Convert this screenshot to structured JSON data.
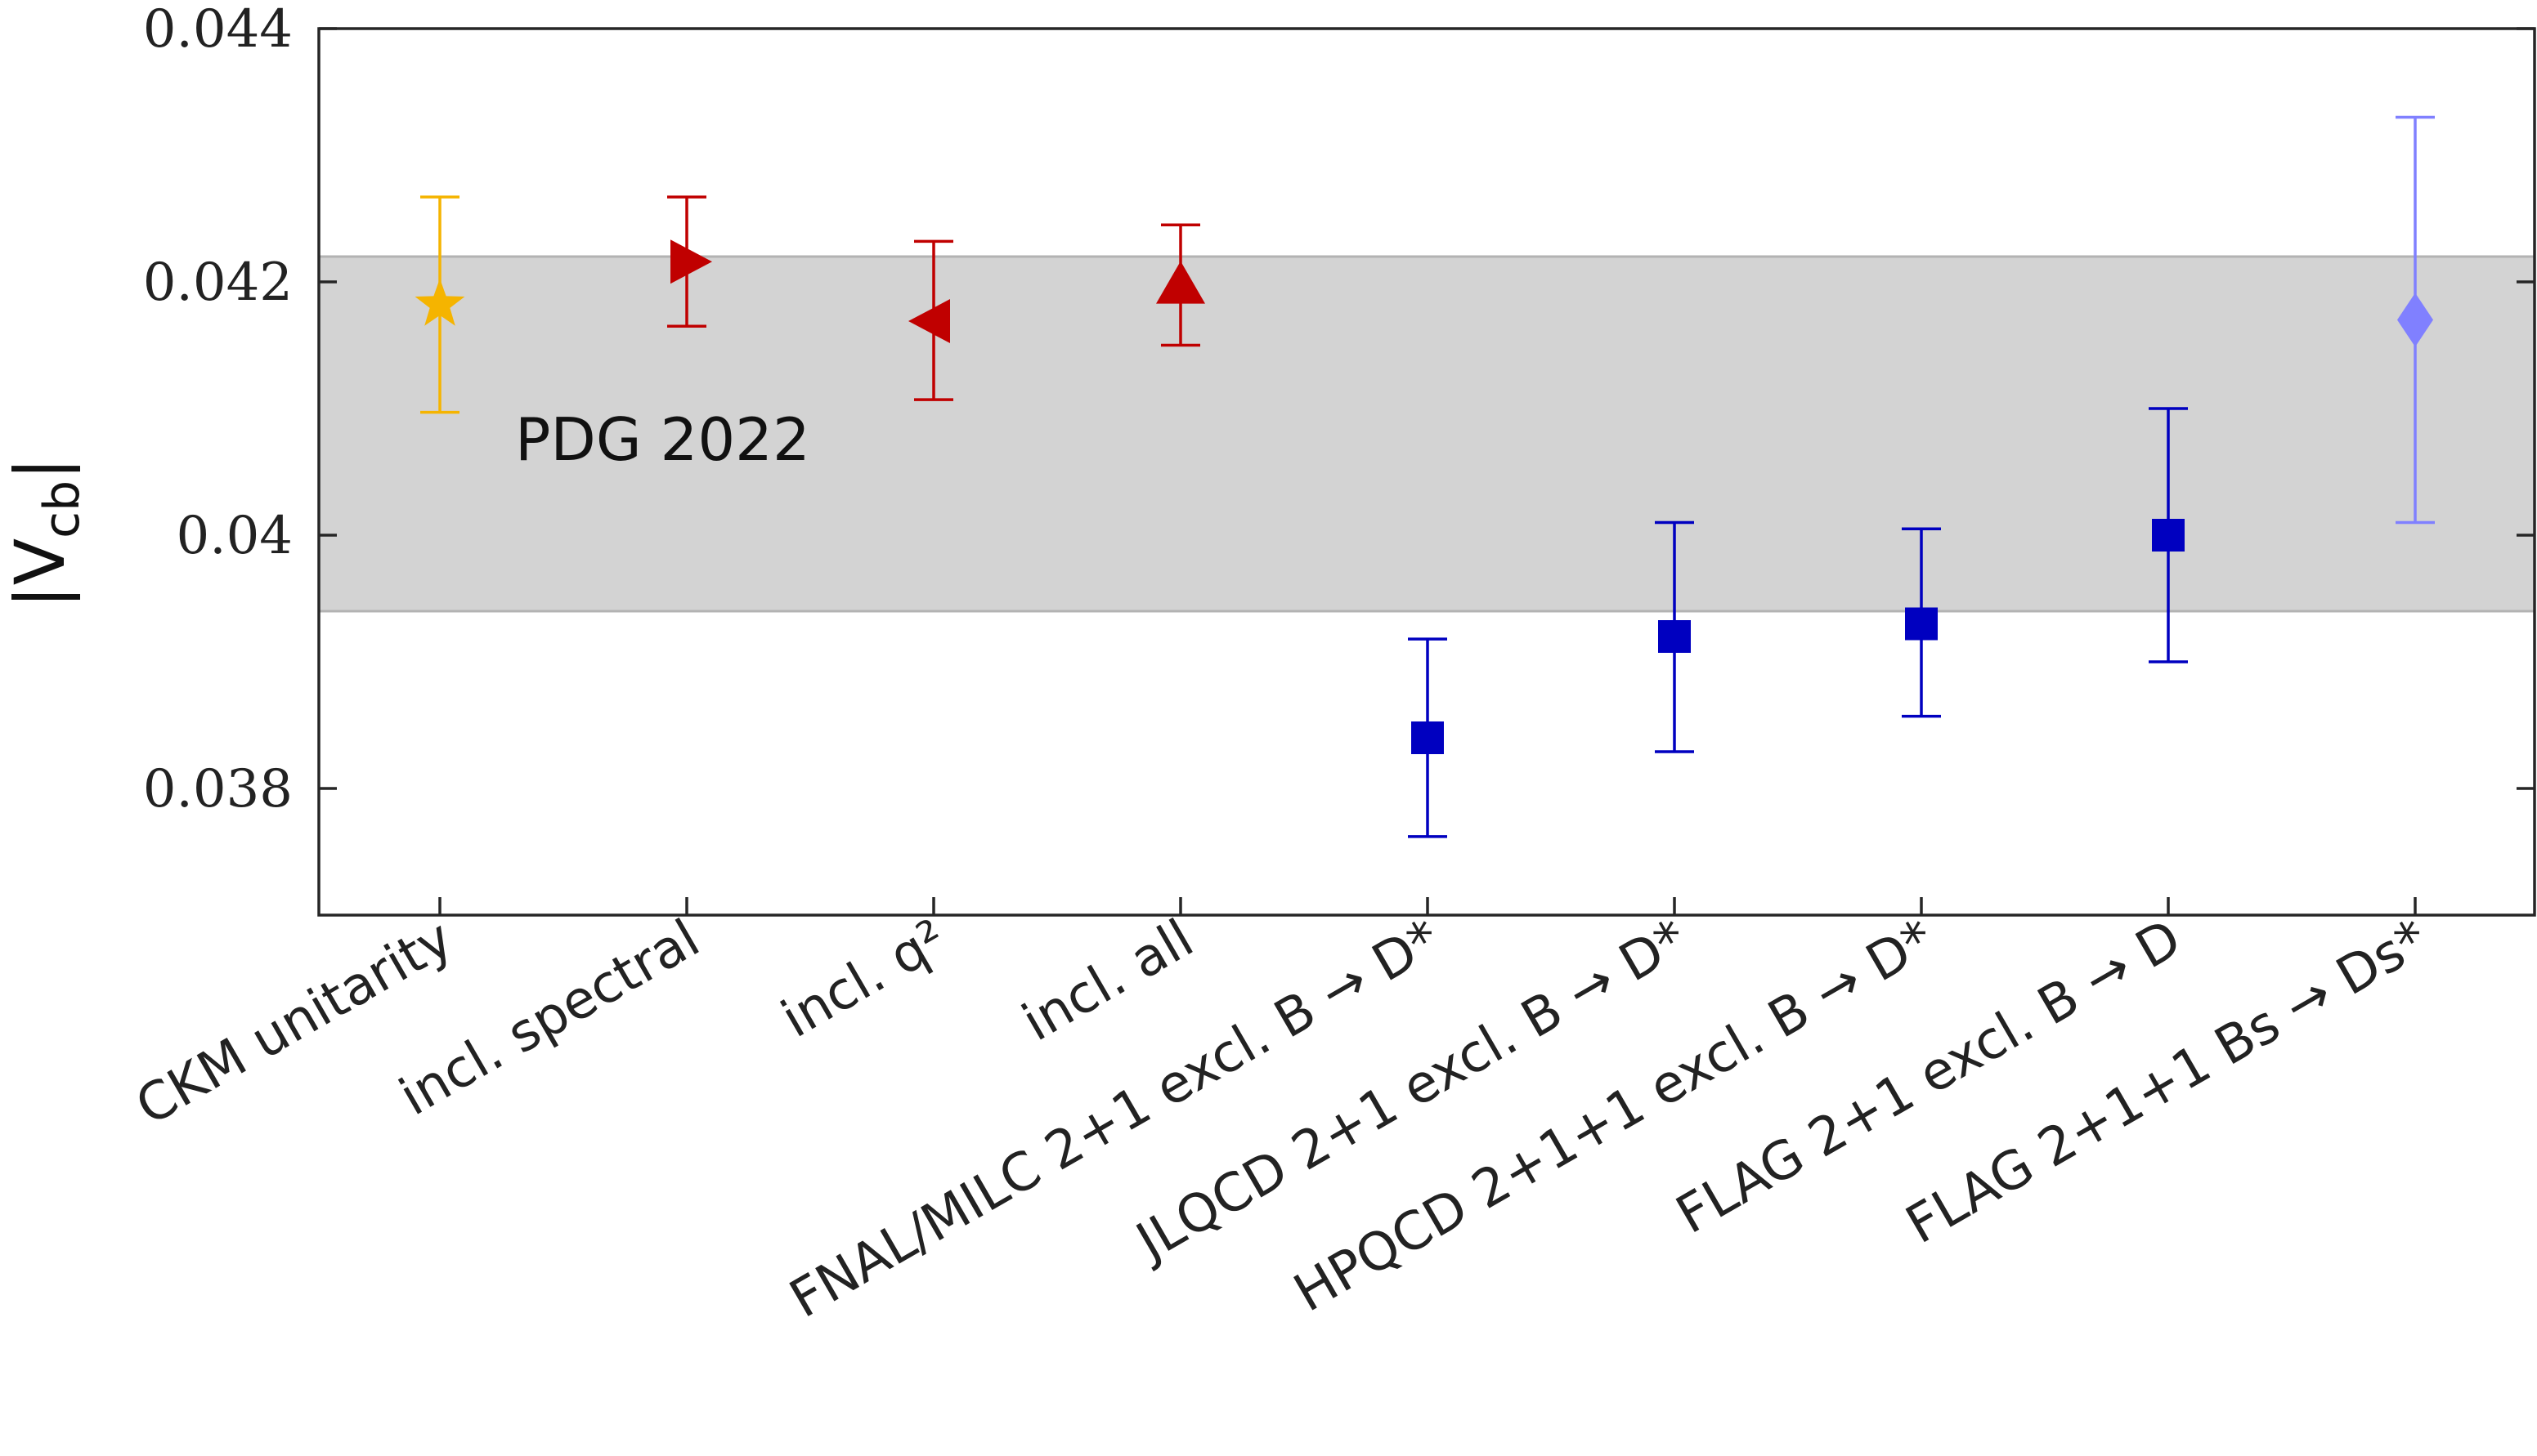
{
  "chart_data": {
    "type": "scatter",
    "ylabel": "|V",
    "ylabel_sub": "cb",
    "ylabel_close": "|",
    "ylim": [
      0.037,
      0.044
    ],
    "yticks": [
      {
        "value": 0.038,
        "label": "0.038"
      },
      {
        "value": 0.04,
        "label": "0.04"
      },
      {
        "value": 0.042,
        "label": "0.042"
      },
      {
        "value": 0.044,
        "label": "0.044"
      }
    ],
    "band": {
      "label": "PDG 2022",
      "low": 0.0394,
      "high": 0.0422,
      "color": "#d3d3d3"
    },
    "points": [
      {
        "label": "CKM unitarity",
        "value": 0.04182,
        "err_low": 0.04097,
        "err_high": 0.04267,
        "marker": "star",
        "color": "#f5b400"
      },
      {
        "label": "incl. spectral",
        "value": 0.04216,
        "err_low": 0.04165,
        "err_high": 0.04267,
        "marker": "triangle-right",
        "color": "#c00000"
      },
      {
        "label": "incl. q²",
        "value": 0.04169,
        "err_low": 0.04107,
        "err_high": 0.04232,
        "marker": "triangle-left",
        "color": "#c00000"
      },
      {
        "label": "incl. all",
        "value": 0.04197,
        "err_low": 0.0415,
        "err_high": 0.04245,
        "marker": "triangle-up",
        "color": "#c00000"
      },
      {
        "label": "FNAL/MILC 2+1 excl. B → D*",
        "value": 0.0384,
        "err_low": 0.03762,
        "err_high": 0.03918,
        "marker": "square",
        "color": "#0000c0"
      },
      {
        "label": "JLQCD 2+1 excl. B → D*",
        "value": 0.0392,
        "err_low": 0.03829,
        "err_high": 0.0401,
        "marker": "square",
        "color": "#0000c0"
      },
      {
        "label": "HPQCD 2+1+1 excl. B → D*",
        "value": 0.0393,
        "err_low": 0.03857,
        "err_high": 0.04005,
        "marker": "square",
        "color": "#0000c0"
      },
      {
        "label": "FLAG 2+1 excl. B → D",
        "value": 0.04,
        "err_low": 0.039,
        "err_high": 0.041,
        "marker": "square",
        "color": "#0000c0"
      },
      {
        "label": "FLAG 2+1+1 Bs → Ds*",
        "value": 0.0417,
        "err_low": 0.0401,
        "err_high": 0.0433,
        "marker": "diamond",
        "color": "#8080ff"
      }
    ]
  }
}
